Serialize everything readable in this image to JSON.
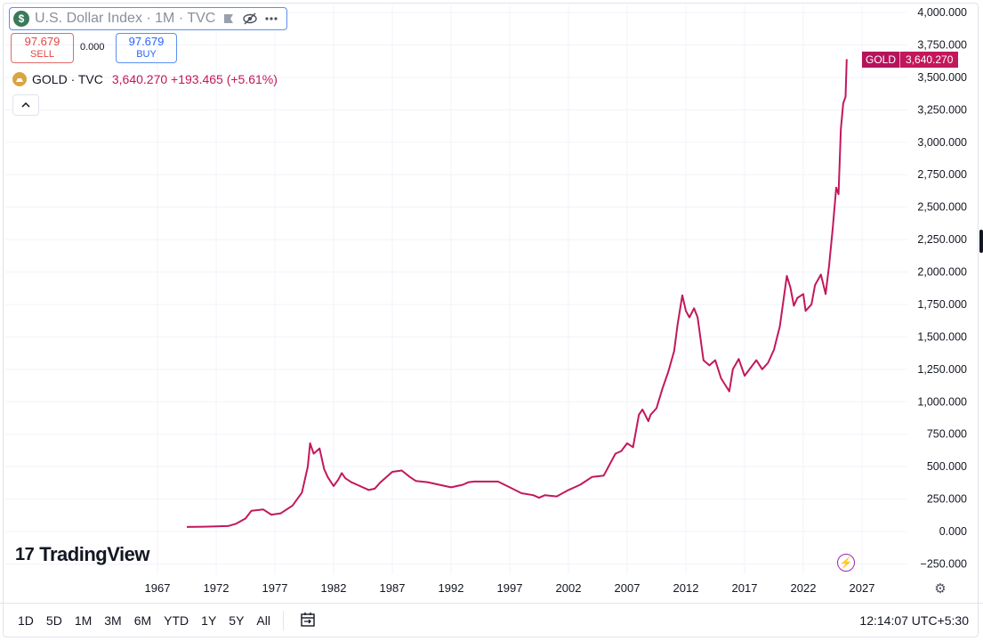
{
  "header": {
    "symbol_icon": "$",
    "symbol_text": "U.S. Dollar Index · 1M · TVC",
    "icons": [
      "flag-icon",
      "eye-off-icon",
      "more-icon"
    ]
  },
  "trade": {
    "sell_price": "97.679",
    "sell_label": "SELL",
    "spread": "0.000",
    "buy_price": "97.679",
    "buy_label": "BUY"
  },
  "legend": {
    "name": "GOLD · TVC",
    "value": "3,640.270 +193.465 (+5.61%)"
  },
  "price_tag": {
    "name": "GOLD",
    "value": "3,640.270"
  },
  "brand": {
    "logo_text": "TradingView",
    "logo_mark": "17"
  },
  "toolbar": {
    "ranges": [
      "1D",
      "5D",
      "1M",
      "3M",
      "6M",
      "YTD",
      "1Y",
      "5Y",
      "All"
    ],
    "clock": "12:14:07 UTC+5:30"
  },
  "colors": {
    "series": "#c2185b",
    "accent": "#2962ff",
    "sell": "#e24545"
  },
  "chart_data": {
    "type": "line",
    "series": [
      {
        "name": "GOLD",
        "x": [
          1969.5,
          1971.0,
          1972.0,
          1973.0,
          1973.7,
          1974.5,
          1975.0,
          1976.0,
          1976.7,
          1977.5,
          1978.5,
          1979.3,
          1979.8,
          1980.0,
          1980.3,
          1980.8,
          1981.2,
          1981.5,
          1982.0,
          1982.4,
          1982.7,
          1983.0,
          1983.5,
          1984.0,
          1985.0,
          1985.5,
          1986.0,
          1987.0,
          1987.8,
          1988.5,
          1989.0,
          1990.0,
          1991.0,
          1992.0,
          1993.0,
          1993.5,
          1994.0,
          1995.0,
          1996.0,
          1997.0,
          1998.0,
          1999.0,
          1999.5,
          2000.0,
          2001.0,
          2002.0,
          2003.0,
          2004.0,
          2005.0,
          2006.0,
          2006.5,
          2007.0,
          2007.5,
          2008.0,
          2008.3,
          2008.8,
          2009.0,
          2009.5,
          2010.0,
          2010.5,
          2011.0,
          2011.3,
          2011.7,
          2012.0,
          2012.3,
          2012.7,
          2013.0,
          2013.3,
          2013.5,
          2014.0,
          2014.5,
          2015.0,
          2015.7,
          2016.0,
          2016.5,
          2017.0,
          2017.5,
          2018.0,
          2018.5,
          2019.0,
          2019.5,
          2020.0,
          2020.6,
          2020.9,
          2021.2,
          2021.5,
          2022.0,
          2022.2,
          2022.7,
          2023.0,
          2023.5,
          2023.9,
          2024.2,
          2024.5,
          2024.8,
          2025.0,
          2025.2,
          2025.4,
          2025.6,
          2025.7
        ],
        "y": [
          35,
          37,
          40,
          42,
          60,
          100,
          160,
          170,
          130,
          140,
          200,
          300,
          500,
          680,
          600,
          640,
          480,
          420,
          350,
          400,
          450,
          410,
          380,
          360,
          320,
          330,
          380,
          460,
          470,
          420,
          390,
          380,
          360,
          340,
          360,
          380,
          385,
          385,
          385,
          340,
          295,
          280,
          260,
          280,
          270,
          320,
          360,
          420,
          430,
          600,
          620,
          680,
          650,
          900,
          940,
          850,
          900,
          950,
          1100,
          1230,
          1390,
          1600,
          1820,
          1700,
          1650,
          1720,
          1650,
          1450,
          1320,
          1280,
          1320,
          1180,
          1080,
          1250,
          1330,
          1200,
          1260,
          1320,
          1250,
          1300,
          1400,
          1580,
          1970,
          1880,
          1740,
          1800,
          1830,
          1700,
          1750,
          1900,
          1980,
          1830,
          2050,
          2330,
          2650,
          2600,
          3100,
          3300,
          3350,
          3640
        ]
      }
    ],
    "xlim": [
      1964,
      2027.5
    ],
    "ylim": [
      -300,
      4070
    ],
    "x_ticks": [
      "1967",
      "1972",
      "1977",
      "1982",
      "1987",
      "1992",
      "1997",
      "2002",
      "2007",
      "2012",
      "2017",
      "2022",
      "2027"
    ],
    "y_ticks": [
      "4,000.000",
      "3,750.000",
      "3,500.000",
      "3,250.000",
      "3,000.000",
      "2,750.000",
      "2,500.000",
      "2,250.000",
      "2,000.000",
      "1,750.000",
      "1,500.000",
      "1,250.000",
      "1,000.000",
      "750.000",
      "500.000",
      "250.000",
      "0.000",
      "−250.000"
    ],
    "y_tick_values": [
      4000,
      3750,
      3500,
      3250,
      3000,
      2750,
      2500,
      2250,
      2000,
      1750,
      1500,
      1250,
      1000,
      750,
      500,
      250,
      0,
      -250
    ],
    "grid": true,
    "price_axis": "right"
  }
}
